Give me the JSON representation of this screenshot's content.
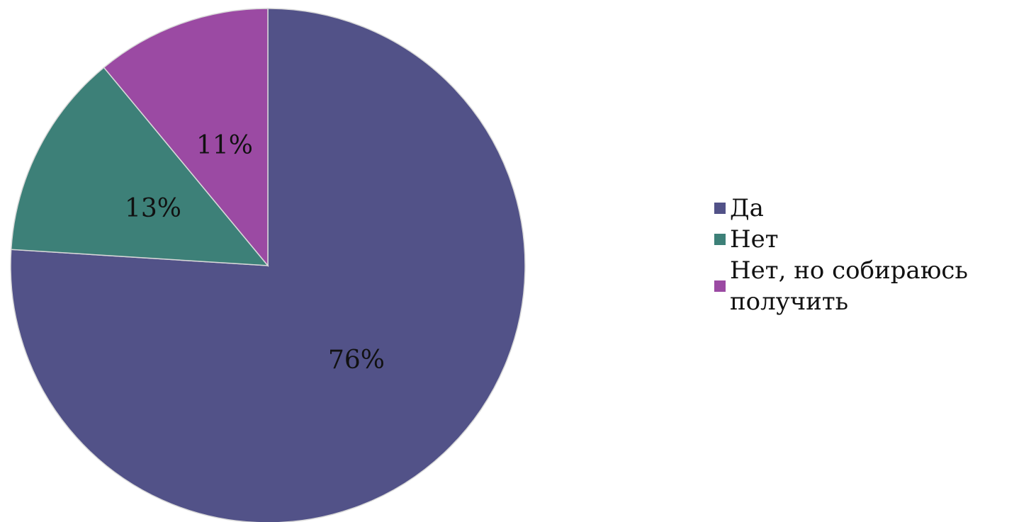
{
  "chart_data": {
    "type": "pie",
    "title": "",
    "legend_position": "right",
    "categories": [
      "Да",
      "Нет",
      "Нет, но собираюсь получить"
    ],
    "values": [
      76,
      13,
      11
    ],
    "labels": [
      "76%",
      "13%",
      "11%"
    ],
    "colors": [
      "#525288",
      "#3d8078",
      "#9b4aa3"
    ],
    "start": "12 o'clock",
    "direction": "clockwise"
  }
}
